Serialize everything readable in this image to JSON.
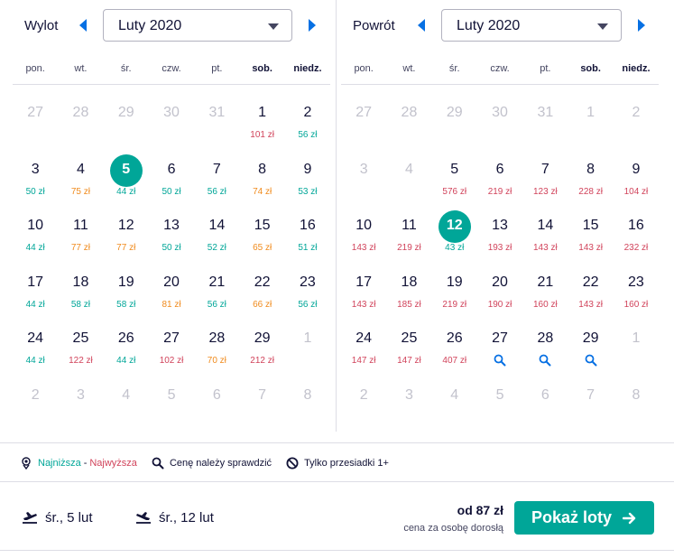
{
  "outbound": {
    "label": "Wylot",
    "month": "Luty 2020",
    "weekdays": [
      "pon.",
      "wt.",
      "śr.",
      "czw.",
      "pt.",
      "sob.",
      "niedz."
    ],
    "days": [
      {
        "d": "27",
        "muted": true
      },
      {
        "d": "28",
        "muted": true
      },
      {
        "d": "29",
        "muted": true
      },
      {
        "d": "30",
        "muted": true
      },
      {
        "d": "31",
        "muted": true
      },
      {
        "d": "1",
        "price": "101 zł",
        "level": "high"
      },
      {
        "d": "2",
        "price": "56 zł",
        "level": "low"
      },
      {
        "d": "3",
        "price": "50 zł",
        "level": "low"
      },
      {
        "d": "4",
        "price": "75 zł",
        "level": "mid"
      },
      {
        "d": "5",
        "price": "44 zł",
        "level": "low",
        "selected": true
      },
      {
        "d": "6",
        "price": "50 zł",
        "level": "low"
      },
      {
        "d": "7",
        "price": "56 zł",
        "level": "low"
      },
      {
        "d": "8",
        "price": "74 zł",
        "level": "mid"
      },
      {
        "d": "9",
        "price": "53 zł",
        "level": "low"
      },
      {
        "d": "10",
        "price": "44 zł",
        "level": "low"
      },
      {
        "d": "11",
        "price": "77 zł",
        "level": "mid"
      },
      {
        "d": "12",
        "price": "77 zł",
        "level": "mid"
      },
      {
        "d": "13",
        "price": "50 zł",
        "level": "low"
      },
      {
        "d": "14",
        "price": "52 zł",
        "level": "low"
      },
      {
        "d": "15",
        "price": "65 zł",
        "level": "mid"
      },
      {
        "d": "16",
        "price": "51 zł",
        "level": "low"
      },
      {
        "d": "17",
        "price": "44 zł",
        "level": "low"
      },
      {
        "d": "18",
        "price": "58 zł",
        "level": "low"
      },
      {
        "d": "19",
        "price": "58 zł",
        "level": "low"
      },
      {
        "d": "20",
        "price": "81 zł",
        "level": "mid"
      },
      {
        "d": "21",
        "price": "56 zł",
        "level": "low"
      },
      {
        "d": "22",
        "price": "66 zł",
        "level": "mid"
      },
      {
        "d": "23",
        "price": "56 zł",
        "level": "low"
      },
      {
        "d": "24",
        "price": "44 zł",
        "level": "low"
      },
      {
        "d": "25",
        "price": "122 zł",
        "level": "high"
      },
      {
        "d": "26",
        "price": "44 zł",
        "level": "low"
      },
      {
        "d": "27",
        "price": "102 zł",
        "level": "high"
      },
      {
        "d": "28",
        "price": "70 zł",
        "level": "mid"
      },
      {
        "d": "29",
        "price": "212 zł",
        "level": "high"
      },
      {
        "d": "1",
        "muted": true
      },
      {
        "d": "2",
        "muted": true
      },
      {
        "d": "3",
        "muted": true
      },
      {
        "d": "4",
        "muted": true
      },
      {
        "d": "5",
        "muted": true
      },
      {
        "d": "6",
        "muted": true
      },
      {
        "d": "7",
        "muted": true
      },
      {
        "d": "8",
        "muted": true
      }
    ]
  },
  "return": {
    "label": "Powrót",
    "month": "Luty 2020",
    "weekdays": [
      "pon.",
      "wt.",
      "śr.",
      "czw.",
      "pt.",
      "sob.",
      "niedz."
    ],
    "days": [
      {
        "d": "27",
        "muted": true
      },
      {
        "d": "28",
        "muted": true
      },
      {
        "d": "29",
        "muted": true
      },
      {
        "d": "30",
        "muted": true
      },
      {
        "d": "31",
        "muted": true
      },
      {
        "d": "1",
        "muted": true
      },
      {
        "d": "2",
        "muted": true
      },
      {
        "d": "3",
        "muted": true
      },
      {
        "d": "4",
        "muted": true
      },
      {
        "d": "5",
        "price": "576 zł",
        "level": "high"
      },
      {
        "d": "6",
        "price": "219 zł",
        "level": "high"
      },
      {
        "d": "7",
        "price": "123 zł",
        "level": "high"
      },
      {
        "d": "8",
        "price": "228 zł",
        "level": "high"
      },
      {
        "d": "9",
        "price": "104 zł",
        "level": "high"
      },
      {
        "d": "10",
        "price": "143 zł",
        "level": "high"
      },
      {
        "d": "11",
        "price": "219 zł",
        "level": "high"
      },
      {
        "d": "12",
        "price": "43 zł",
        "level": "low",
        "selected": true
      },
      {
        "d": "13",
        "price": "193 zł",
        "level": "high"
      },
      {
        "d": "14",
        "price": "143 zł",
        "level": "high"
      },
      {
        "d": "15",
        "price": "143 zł",
        "level": "high"
      },
      {
        "d": "16",
        "price": "232 zł",
        "level": "high"
      },
      {
        "d": "17",
        "price": "143 zł",
        "level": "high"
      },
      {
        "d": "18",
        "price": "185 zł",
        "level": "high"
      },
      {
        "d": "19",
        "price": "219 zł",
        "level": "high"
      },
      {
        "d": "20",
        "price": "190 zł",
        "level": "high"
      },
      {
        "d": "21",
        "price": "160 zł",
        "level": "high"
      },
      {
        "d": "22",
        "price": "143 zł",
        "level": "high"
      },
      {
        "d": "23",
        "price": "160 zł",
        "level": "high"
      },
      {
        "d": "24",
        "price": "147 zł",
        "level": "high"
      },
      {
        "d": "25",
        "price": "147 zł",
        "level": "high"
      },
      {
        "d": "26",
        "price": "407 zł",
        "level": "high"
      },
      {
        "d": "27",
        "search": true
      },
      {
        "d": "28",
        "search": true
      },
      {
        "d": "29",
        "search": true
      },
      {
        "d": "1",
        "muted": true
      },
      {
        "d": "2",
        "muted": true
      },
      {
        "d": "3",
        "muted": true
      },
      {
        "d": "4",
        "muted": true
      },
      {
        "d": "5",
        "muted": true
      },
      {
        "d": "6",
        "muted": true
      },
      {
        "d": "7",
        "muted": true
      },
      {
        "d": "8",
        "muted": true
      }
    ]
  },
  "legend": {
    "lowest": "Najniższa",
    "dash": "-",
    "highest": "Najwyższa",
    "check_price": "Cenę należy sprawdzić",
    "transfers_only": "Tylko przesiadki 1+"
  },
  "summary": {
    "outbound_date": "śr., 5 lut",
    "return_date": "śr., 12 lut",
    "price": "od 87 zł",
    "price_note": "cena za osobę dorosłą",
    "cta_label": "Pokaż loty"
  },
  "colors": {
    "accent": "#00a698",
    "price_low": "#00a698",
    "price_mid": "#f08b1d",
    "price_high": "#d1435b",
    "nav_arrow": "#0770e3"
  }
}
